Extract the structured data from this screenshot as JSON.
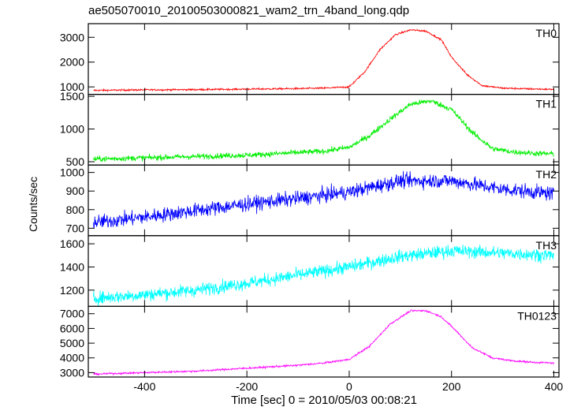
{
  "chart_data": {
    "type": "line",
    "title": "ae505070010_20100503000821_wam2_trn_4band_long.qdp",
    "xlabel": "Time [sec] 0 = 2010/05/03 00:08:21",
    "ylabel": "Counts/sec",
    "xlim": [
      -510,
      410
    ],
    "x_ticks": [
      -400,
      -200,
      0,
      200,
      400
    ],
    "grid": false,
    "panels": [
      {
        "name": "TH0",
        "color": "#ff0000",
        "ylim": [
          700,
          3550
        ],
        "y_ticks": [
          1000,
          2000,
          3000
        ],
        "x": [
          -500,
          -400,
          -300,
          -200,
          -100,
          -50,
          0,
          30,
          60,
          90,
          120,
          150,
          180,
          200,
          230,
          260,
          300,
          350,
          400
        ],
        "y": [
          860,
          880,
          890,
          910,
          930,
          950,
          1000,
          1600,
          2500,
          3100,
          3300,
          3250,
          2900,
          2200,
          1500,
          1050,
          950,
          920,
          900
        ],
        "noise": 25
      },
      {
        "name": "TH1",
        "color": "#00ee00",
        "ylim": [
          450,
          1530
        ],
        "y_ticks": [
          500,
          1000,
          1500
        ],
        "x": [
          -500,
          -400,
          -300,
          -200,
          -100,
          -50,
          0,
          40,
          80,
          120,
          160,
          200,
          240,
          280,
          320,
          360,
          400
        ],
        "y": [
          540,
          560,
          580,
          600,
          640,
          660,
          720,
          900,
          1150,
          1380,
          1430,
          1300,
          950,
          700,
          650,
          630,
          620
        ],
        "noise": 30
      },
      {
        "name": "TH2",
        "color": "#0000ff",
        "ylim": [
          660,
          1040
        ],
        "y_ticks": [
          700,
          800,
          900,
          1000
        ],
        "x": [
          -500,
          -400,
          -300,
          -200,
          -100,
          0,
          100,
          200,
          300,
          400
        ],
        "y": [
          730,
          760,
          795,
          830,
          860,
          895,
          955,
          955,
          910,
          885
        ],
        "noise": 28
      },
      {
        "name": "TH3",
        "color": "#00ffff",
        "ylim": [
          1060,
          1670
        ],
        "y_ticks": [
          1200,
          1400,
          1600
        ],
        "x": [
          -500,
          -400,
          -300,
          -200,
          -100,
          0,
          100,
          200,
          300,
          400
        ],
        "y": [
          1130,
          1160,
          1200,
          1260,
          1330,
          1400,
          1490,
          1540,
          1520,
          1500
        ],
        "noise": 40
      },
      {
        "name": "TH0123",
        "color": "#ff00ff",
        "ylim": [
          2700,
          7500
        ],
        "y_ticks": [
          3000,
          4000,
          5000,
          6000,
          7000
        ],
        "x": [
          -500,
          -400,
          -300,
          -200,
          -100,
          -50,
          0,
          40,
          80,
          120,
          150,
          180,
          210,
          240,
          280,
          320,
          360,
          400
        ],
        "y": [
          2900,
          3000,
          3100,
          3300,
          3500,
          3650,
          3900,
          4800,
          6300,
          7200,
          7200,
          6800,
          5800,
          4700,
          4000,
          3800,
          3700,
          3650
        ],
        "noise": 45
      }
    ]
  }
}
